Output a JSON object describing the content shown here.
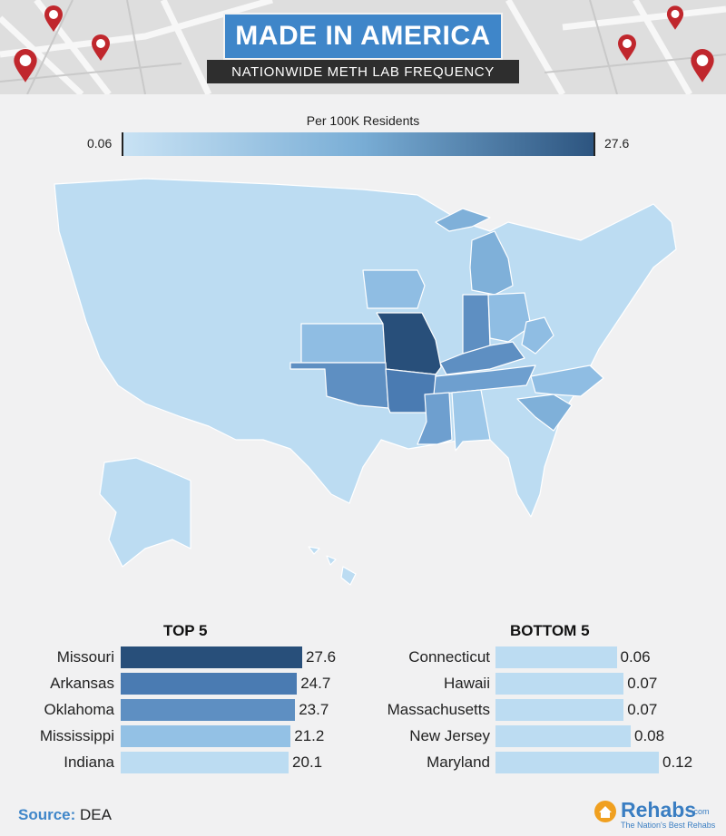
{
  "header": {
    "title": "MADE IN AMERICA",
    "subtitle": "NATIONWIDE METH LAB FREQUENCY"
  },
  "legend": {
    "title": "Per 100K Residents",
    "min": "0.06",
    "max": "27.6",
    "color_low": "#c8e2f4",
    "color_high": "#2d5580"
  },
  "map": {
    "highlighted_states": {
      "darkest": [
        "Missouri"
      ],
      "dark": [
        "Arkansas",
        "Oklahoma"
      ],
      "medium_dark": [
        "Mississippi",
        "Indiana",
        "Kentucky",
        "Tennessee"
      ],
      "medium": [
        "Michigan",
        "Iowa",
        "Kansas",
        "Ohio",
        "Alabama",
        "South Carolina",
        "North Carolina",
        "West Virginia"
      ]
    }
  },
  "chart_data": [
    {
      "type": "bar",
      "title": "TOP 5",
      "categories": [
        "Missouri",
        "Arkansas",
        "Oklahoma",
        "Mississippi",
        "Indiana"
      ],
      "values": [
        27.6,
        24.7,
        23.7,
        21.2,
        20.1
      ],
      "colors": [
        "#284f7a",
        "#4a7bb2",
        "#5e8fc2",
        "#93c1e5",
        "#bcdcf2"
      ]
    },
    {
      "type": "bar",
      "title": "BOTTOM 5",
      "categories": [
        "Connecticut",
        "Hawaii",
        "Massachusetts",
        "New Jersey",
        "Maryland"
      ],
      "values": [
        0.06,
        0.07,
        0.07,
        0.08,
        0.12
      ],
      "colors": [
        "#bcdcf2",
        "#bcdcf2",
        "#bcdcf2",
        "#bcdcf2",
        "#bcdcf2"
      ]
    }
  ],
  "footer": {
    "source_label": "Source:",
    "source_value": "DEA",
    "brand_name": "Rehabs",
    "brand_domain": ".com",
    "brand_tagline": "The Nation's Best Rehabs"
  }
}
